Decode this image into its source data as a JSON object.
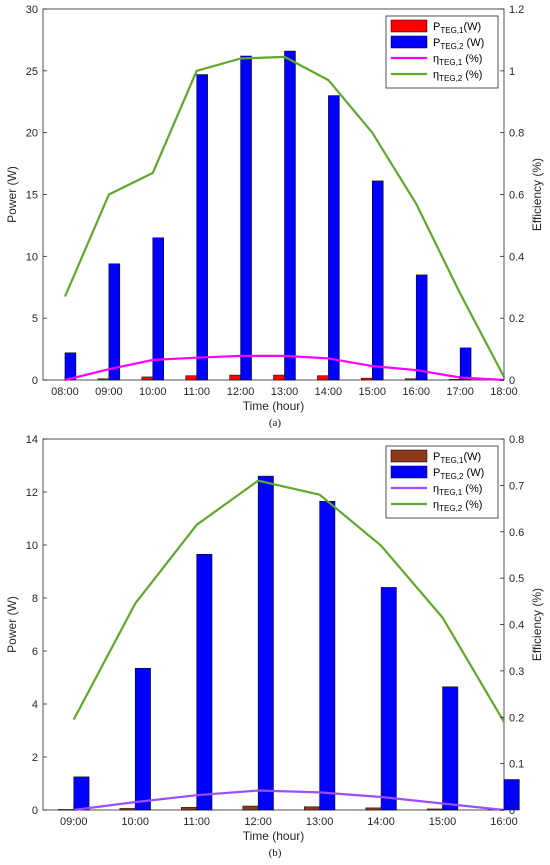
{
  "chart_data": [
    {
      "type": "bar",
      "panel": "a",
      "caption": "(a)",
      "xlabel": "Time (hour)",
      "ylabel": "Power (W)",
      "y2label": "Efficiency (%)",
      "categories": [
        "08:00",
        "09:00",
        "10:00",
        "11:00",
        "12:00",
        "13:00",
        "14:00",
        "15:00",
        "16:00",
        "17:00",
        "18:00"
      ],
      "ylim": [
        0,
        30
      ],
      "yticks": [
        0,
        5,
        10,
        15,
        20,
        25,
        30
      ],
      "y2lim": [
        0,
        1.2
      ],
      "y2ticks": [
        0,
        0.2,
        0.4,
        0.6,
        0.8,
        1,
        1.2
      ],
      "grid": false,
      "legend_position": "top-right",
      "series": [
        {
          "name": "P_TEG,1 (W)",
          "legend": {
            "main": "P",
            "sub": "TEG,1",
            "suffix": "(W)"
          },
          "kind": "bar",
          "axis": "left",
          "color": "#ff0000",
          "values": [
            0.0,
            0.1,
            0.25,
            0.35,
            0.4,
            0.4,
            0.35,
            0.15,
            0.1,
            0.05,
            0.0
          ]
        },
        {
          "name": "P_TEG,2 (W)",
          "legend": {
            "main": "P",
            "sub": "TEG,2",
            "suffix": " (W)"
          },
          "kind": "bar",
          "axis": "left",
          "color": "#0000ff",
          "values": [
            2.2,
            9.4,
            11.5,
            24.7,
            26.2,
            26.6,
            23.0,
            16.1,
            8.5,
            2.6,
            0.0
          ]
        },
        {
          "name": "η_TEG,1 (%)",
          "legend": {
            "main": "η",
            "sub": "TEG,1",
            "suffix": " (%)"
          },
          "kind": "line",
          "axis": "right",
          "color": "#ff00ff",
          "values": [
            0.0,
            0.035,
            0.065,
            0.072,
            0.078,
            0.078,
            0.07,
            0.045,
            0.032,
            0.008,
            0.0
          ]
        },
        {
          "name": "η_TEG,2 (%)",
          "legend": {
            "main": "η",
            "sub": "TEG,2",
            "suffix": " (%)"
          },
          "kind": "line",
          "axis": "right",
          "color": "#5fa82b",
          "values": [
            0.27,
            0.6,
            0.67,
            1.0,
            1.04,
            1.045,
            0.97,
            0.8,
            0.57,
            0.28,
            0.01
          ]
        }
      ]
    },
    {
      "type": "bar",
      "panel": "b",
      "caption": "(b)",
      "xlabel": "Time (hour)",
      "ylabel": "Power (W)",
      "y2label": "Efficiency (%)",
      "categories": [
        "09:00",
        "10:00",
        "11:00",
        "12:00",
        "13:00",
        "14:00",
        "15:00",
        "16:00"
      ],
      "ylim": [
        0,
        14
      ],
      "yticks": [
        0,
        2,
        4,
        6,
        8,
        10,
        12,
        14
      ],
      "y2lim": [
        0,
        0.8
      ],
      "y2ticks": [
        0,
        0.1,
        0.2,
        0.3,
        0.4,
        0.5,
        0.6,
        0.7,
        0.8
      ],
      "grid": false,
      "legend_position": "top-right",
      "series": [
        {
          "name": "P_TEG,1 (W)",
          "legend": {
            "main": "P",
            "sub": "TEG,1",
            "suffix": "(W)"
          },
          "kind": "bar",
          "axis": "left",
          "color": "#8b3a1a",
          "values": [
            0.02,
            0.06,
            0.1,
            0.15,
            0.12,
            0.08,
            0.04,
            0.02
          ]
        },
        {
          "name": "P_TEG,2 (W)",
          "legend": {
            "main": "P",
            "sub": "TEG,2",
            "suffix": " (W)"
          },
          "kind": "bar",
          "axis": "left",
          "color": "#0000ff",
          "values": [
            1.25,
            5.35,
            9.65,
            12.6,
            11.65,
            8.4,
            4.65,
            1.15
          ]
        },
        {
          "name": "η_TEG,1 (%)",
          "legend": {
            "main": "η",
            "sub": "TEG,1",
            "suffix": " (%)"
          },
          "kind": "line",
          "axis": "right",
          "color": "#9b4dff",
          "values": [
            0.0,
            0.017,
            0.032,
            0.042,
            0.038,
            0.028,
            0.014,
            0.0
          ]
        },
        {
          "name": "η_TEG,2 (%)",
          "legend": {
            "main": "η",
            "sub": "TEG,2",
            "suffix": " (%)"
          },
          "kind": "line",
          "axis": "right",
          "color": "#5fa82b",
          "values": [
            0.195,
            0.445,
            0.615,
            0.71,
            0.68,
            0.57,
            0.415,
            0.19
          ]
        }
      ]
    }
  ]
}
